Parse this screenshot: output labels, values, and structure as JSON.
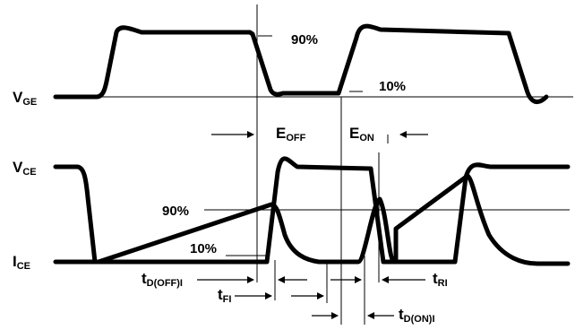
{
  "signals": {
    "vge": {
      "main": "V",
      "sub": "GE"
    },
    "vce": {
      "main": "V",
      "sub": "CE"
    },
    "ice": {
      "main": "I",
      "sub": "CE"
    }
  },
  "thresholds": {
    "vge_90": "90%",
    "vge_10": "10%",
    "ice_90": "90%",
    "ice_10": "10%"
  },
  "energies": {
    "eoff": {
      "main": "E",
      "sub": "OFF"
    },
    "eon": {
      "main": "E",
      "sub": "ON"
    }
  },
  "timings": {
    "td_off": {
      "main": "t",
      "sub": "D(OFF)I"
    },
    "tfi": {
      "main": "t",
      "sub": "FI"
    },
    "tri": {
      "main": "t",
      "sub": "RI"
    },
    "td_on": {
      "main": "t",
      "sub": "D(ON)I"
    }
  }
}
